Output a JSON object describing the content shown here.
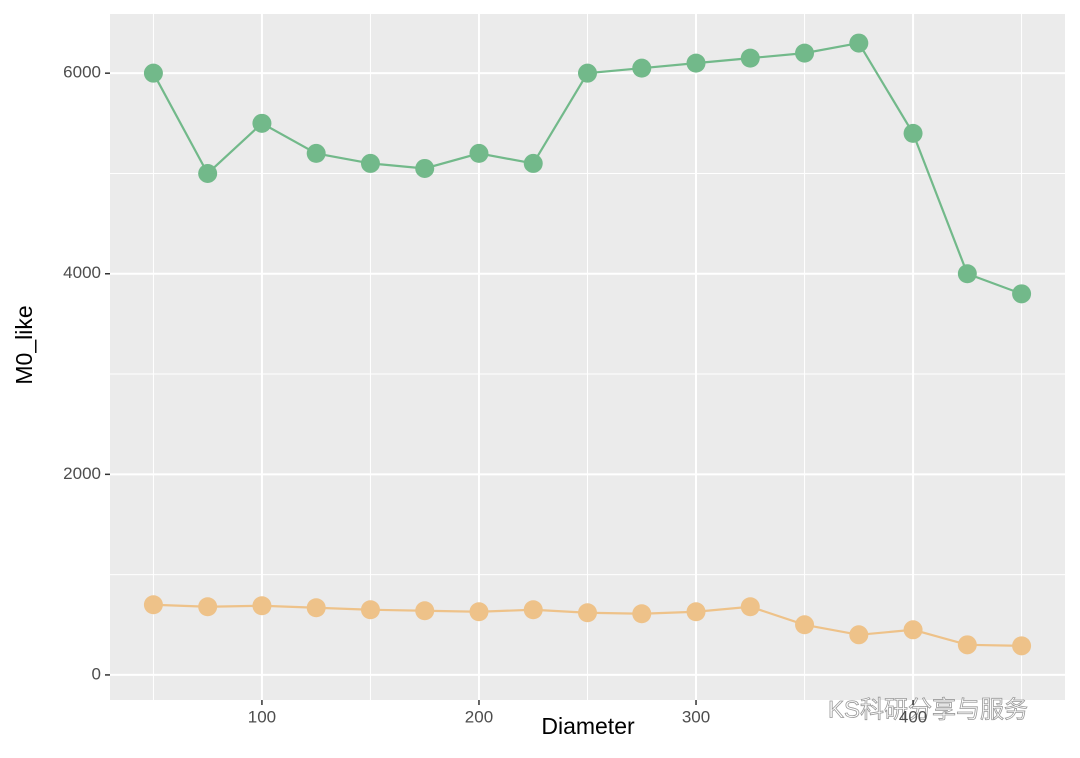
{
  "chart_data": {
    "type": "line",
    "x_label": "Diameter",
    "y_label": "M0_like",
    "x": [
      50,
      75,
      100,
      125,
      150,
      175,
      200,
      225,
      250,
      275,
      300,
      325,
      350,
      375,
      400,
      425,
      450
    ],
    "series": [
      {
        "color": "#72b98a",
        "values": [
          6000,
          5000,
          5500,
          5200,
          5100,
          5050,
          5200,
          5100,
          6000,
          6050,
          6100,
          6150,
          6200,
          6300,
          5400,
          4000,
          3800
        ]
      },
      {
        "color": "#eec289",
        "values": [
          700,
          680,
          690,
          670,
          650,
          640,
          630,
          650,
          620,
          610,
          630,
          680,
          500,
          400,
          450,
          300,
          290
        ]
      }
    ],
    "xlim": [
      30,
      470
    ],
    "ylim": [
      -250,
      6590
    ],
    "xticks": [
      100,
      200,
      300,
      400
    ],
    "yticks": [
      0,
      2000,
      4000,
      6000
    ],
    "grid": true,
    "watermark": "KS科研分享与服务"
  }
}
